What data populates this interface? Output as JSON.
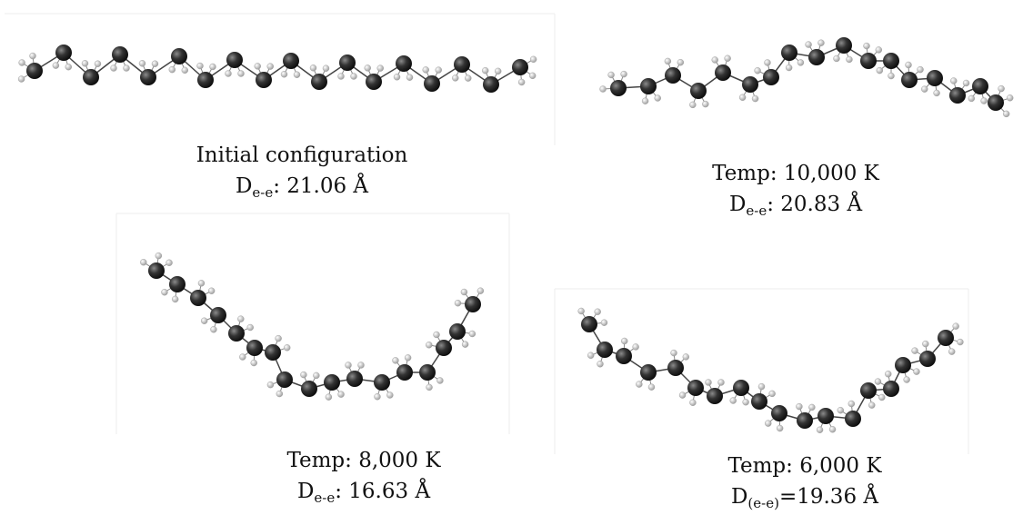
{
  "panels": [
    {
      "title": "Initial configuration",
      "symbol": "D",
      "subscript": "e-e",
      "distance": ": 21.06 Å"
    },
    {
      "title": "Temp: 10,000 K",
      "symbol": "D",
      "subscript": "e-e",
      "distance": ": 20.83 Å"
    },
    {
      "title": "Temp: 8,000 K",
      "symbol": "D",
      "subscript": "e-e",
      "distance": ": 16.63 Å"
    },
    {
      "title": "Temp: 6,000 K",
      "symbol": "D",
      "subscript": "(e-e)",
      "distance": "=19.36 Å"
    }
  ]
}
